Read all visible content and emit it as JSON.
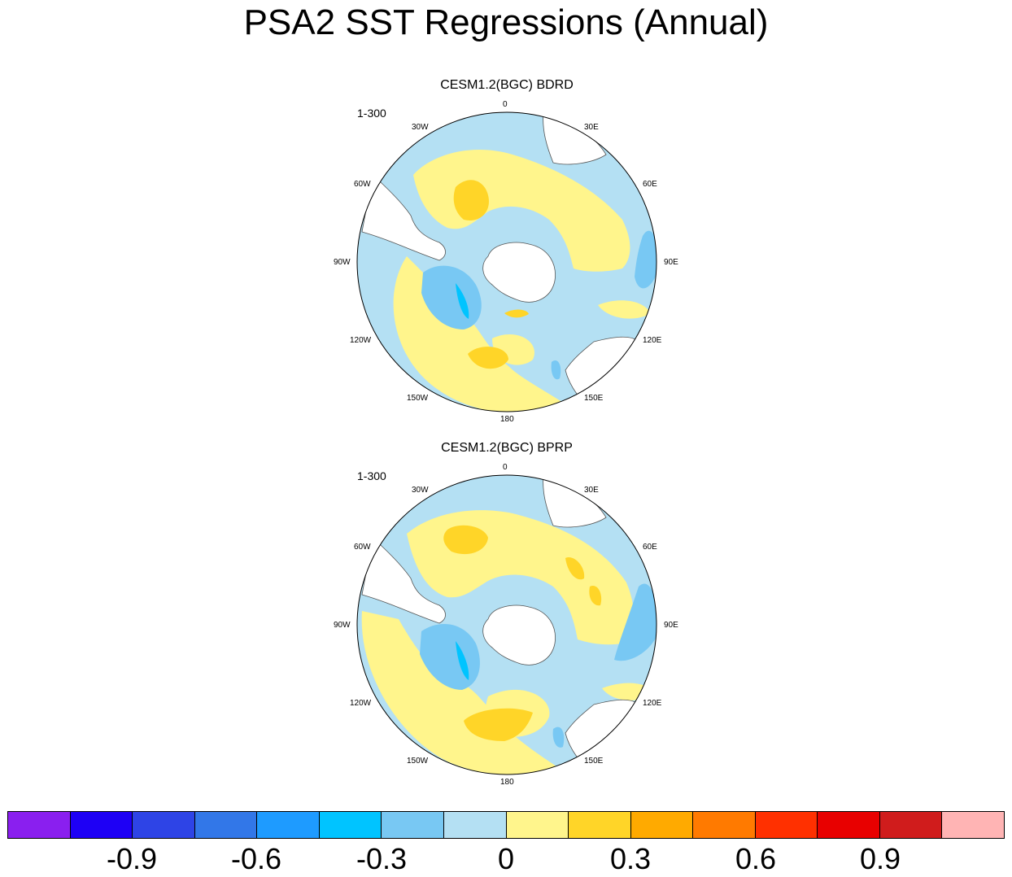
{
  "figure": {
    "title": "PSA2 SST Regressions (Annual)"
  },
  "panels": [
    {
      "title": "CESM1.2(BGC) BDRD",
      "subtitle": "1-300",
      "lon_labels": [
        "0",
        "30E",
        "60E",
        "90E",
        "120E",
        "150E",
        "180",
        "150W",
        "120W",
        "90W",
        "60W",
        "30W"
      ]
    },
    {
      "title": "CESM1.2(BGC) BPRP",
      "subtitle": "1-300",
      "lon_labels": [
        "0",
        "30E",
        "60E",
        "90E",
        "120E",
        "150E",
        "180",
        "150W",
        "120W",
        "90W",
        "60W",
        "30W"
      ]
    }
  ],
  "colorbar": {
    "colors": [
      "#8a1fef",
      "#1e00f5",
      "#2e44e6",
      "#3277e8",
      "#1e9bff",
      "#00c4ff",
      "#78c8f3",
      "#b4e0f3",
      "#fff58c",
      "#ffd528",
      "#ffaa00",
      "#ff7a00",
      "#ff3000",
      "#e80000",
      "#d01c1c",
      "#ffb4b4"
    ],
    "tick_labels": [
      "-0.9",
      "-0.6",
      "-0.3",
      "0",
      "0.3",
      "0.6",
      "0.9"
    ]
  },
  "colors": {
    "land": "#ffffff",
    "neg_weak": "#b4e0f3",
    "neg_mod": "#78c8f3",
    "neg_strong": "#00c4ff",
    "pos_weak": "#fff58c",
    "pos_mod": "#ffd528",
    "pos_strong": "#ffaa00"
  }
}
